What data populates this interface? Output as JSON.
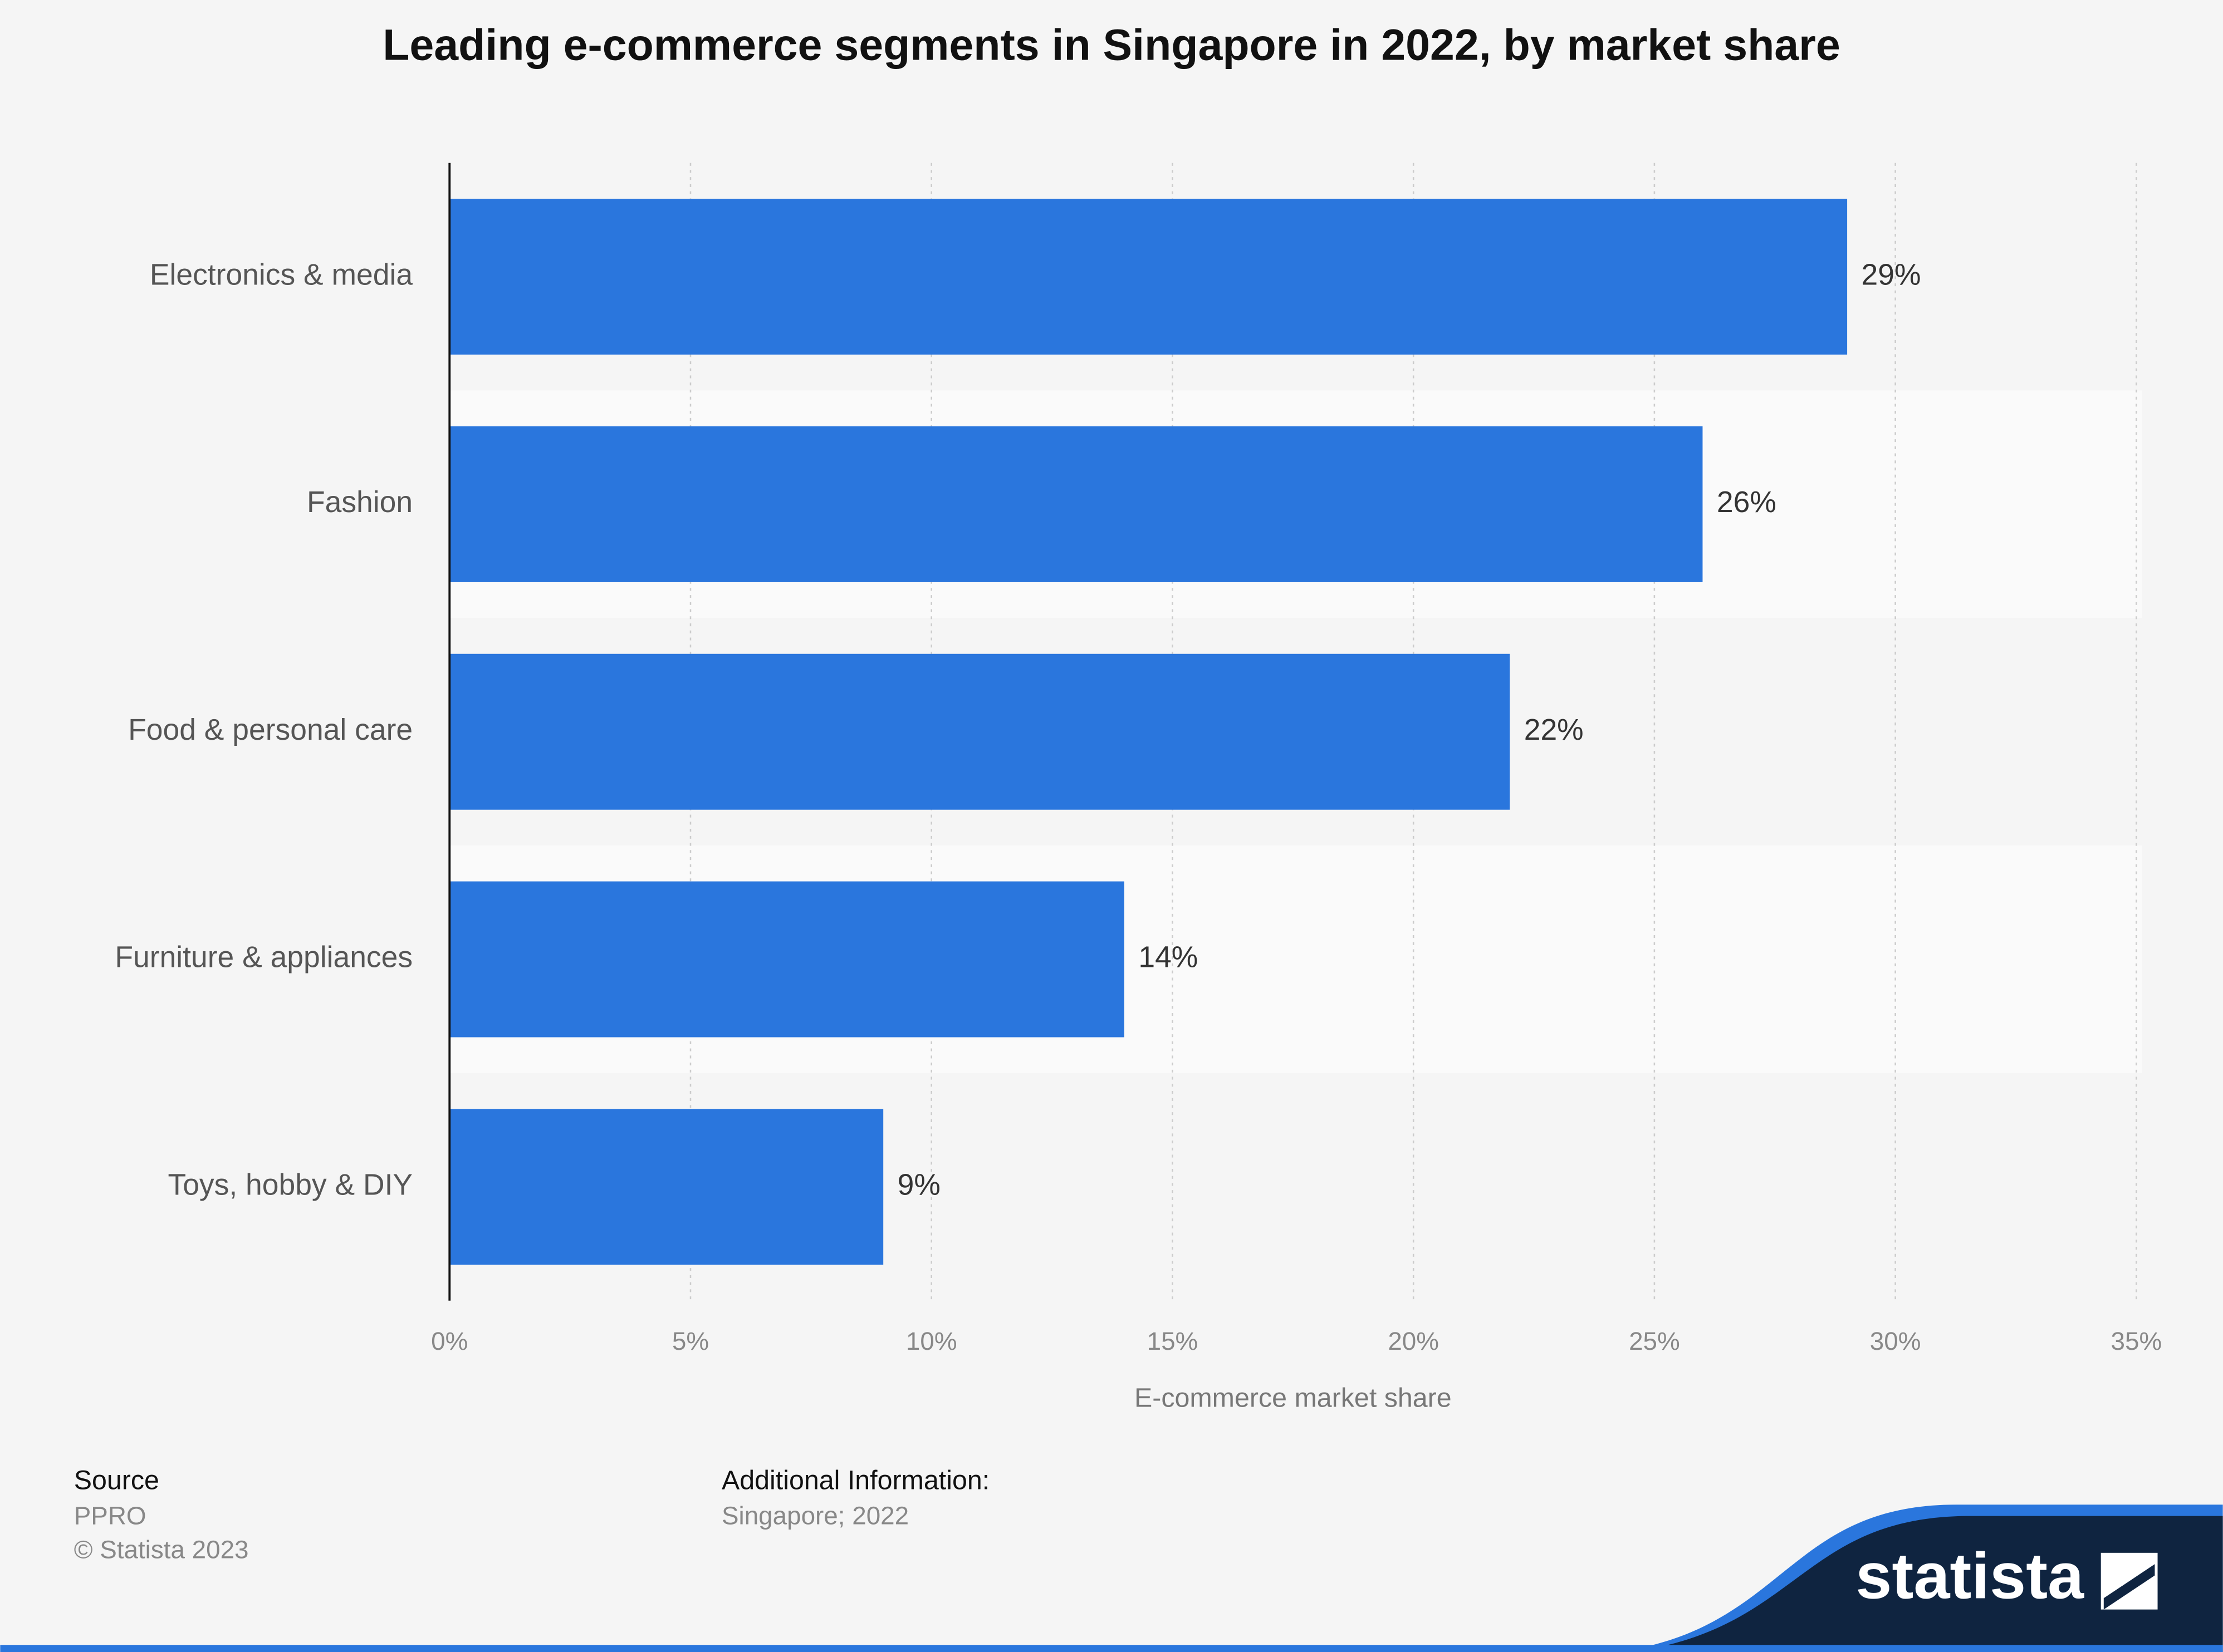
{
  "chart_data": {
    "type": "bar",
    "orientation": "horizontal",
    "title": "Leading e-commerce segments in Singapore in 2022, by market share",
    "categories": [
      "Electronics & media",
      "Fashion",
      "Food & personal care",
      "Furniture & appliances",
      "Toys, hobby & DIY"
    ],
    "values": [
      29,
      26,
      22,
      14,
      9
    ],
    "value_labels": [
      "29%",
      "26%",
      "22%",
      "14%",
      "9%"
    ],
    "color": "#2a76dd",
    "xlim": [
      0,
      35
    ],
    "xticks": [
      {
        "value": 0,
        "label": "0%"
      },
      {
        "value": 5,
        "label": "5%"
      },
      {
        "value": 10,
        "label": "10%"
      },
      {
        "value": 15,
        "label": "15%"
      },
      {
        "value": 20,
        "label": "20%"
      },
      {
        "value": 25,
        "label": "25%"
      },
      {
        "value": 30,
        "label": "30%"
      },
      {
        "value": 35,
        "label": "35%"
      }
    ],
    "xlabel": "E-commerce market share",
    "grid": true
  },
  "footer": {
    "source_heading": "Source",
    "source": "PPRO",
    "copyright": "© Statista 2023",
    "info_heading": "Additional Information:",
    "info": "Singapore; 2022",
    "brand": "statista"
  }
}
